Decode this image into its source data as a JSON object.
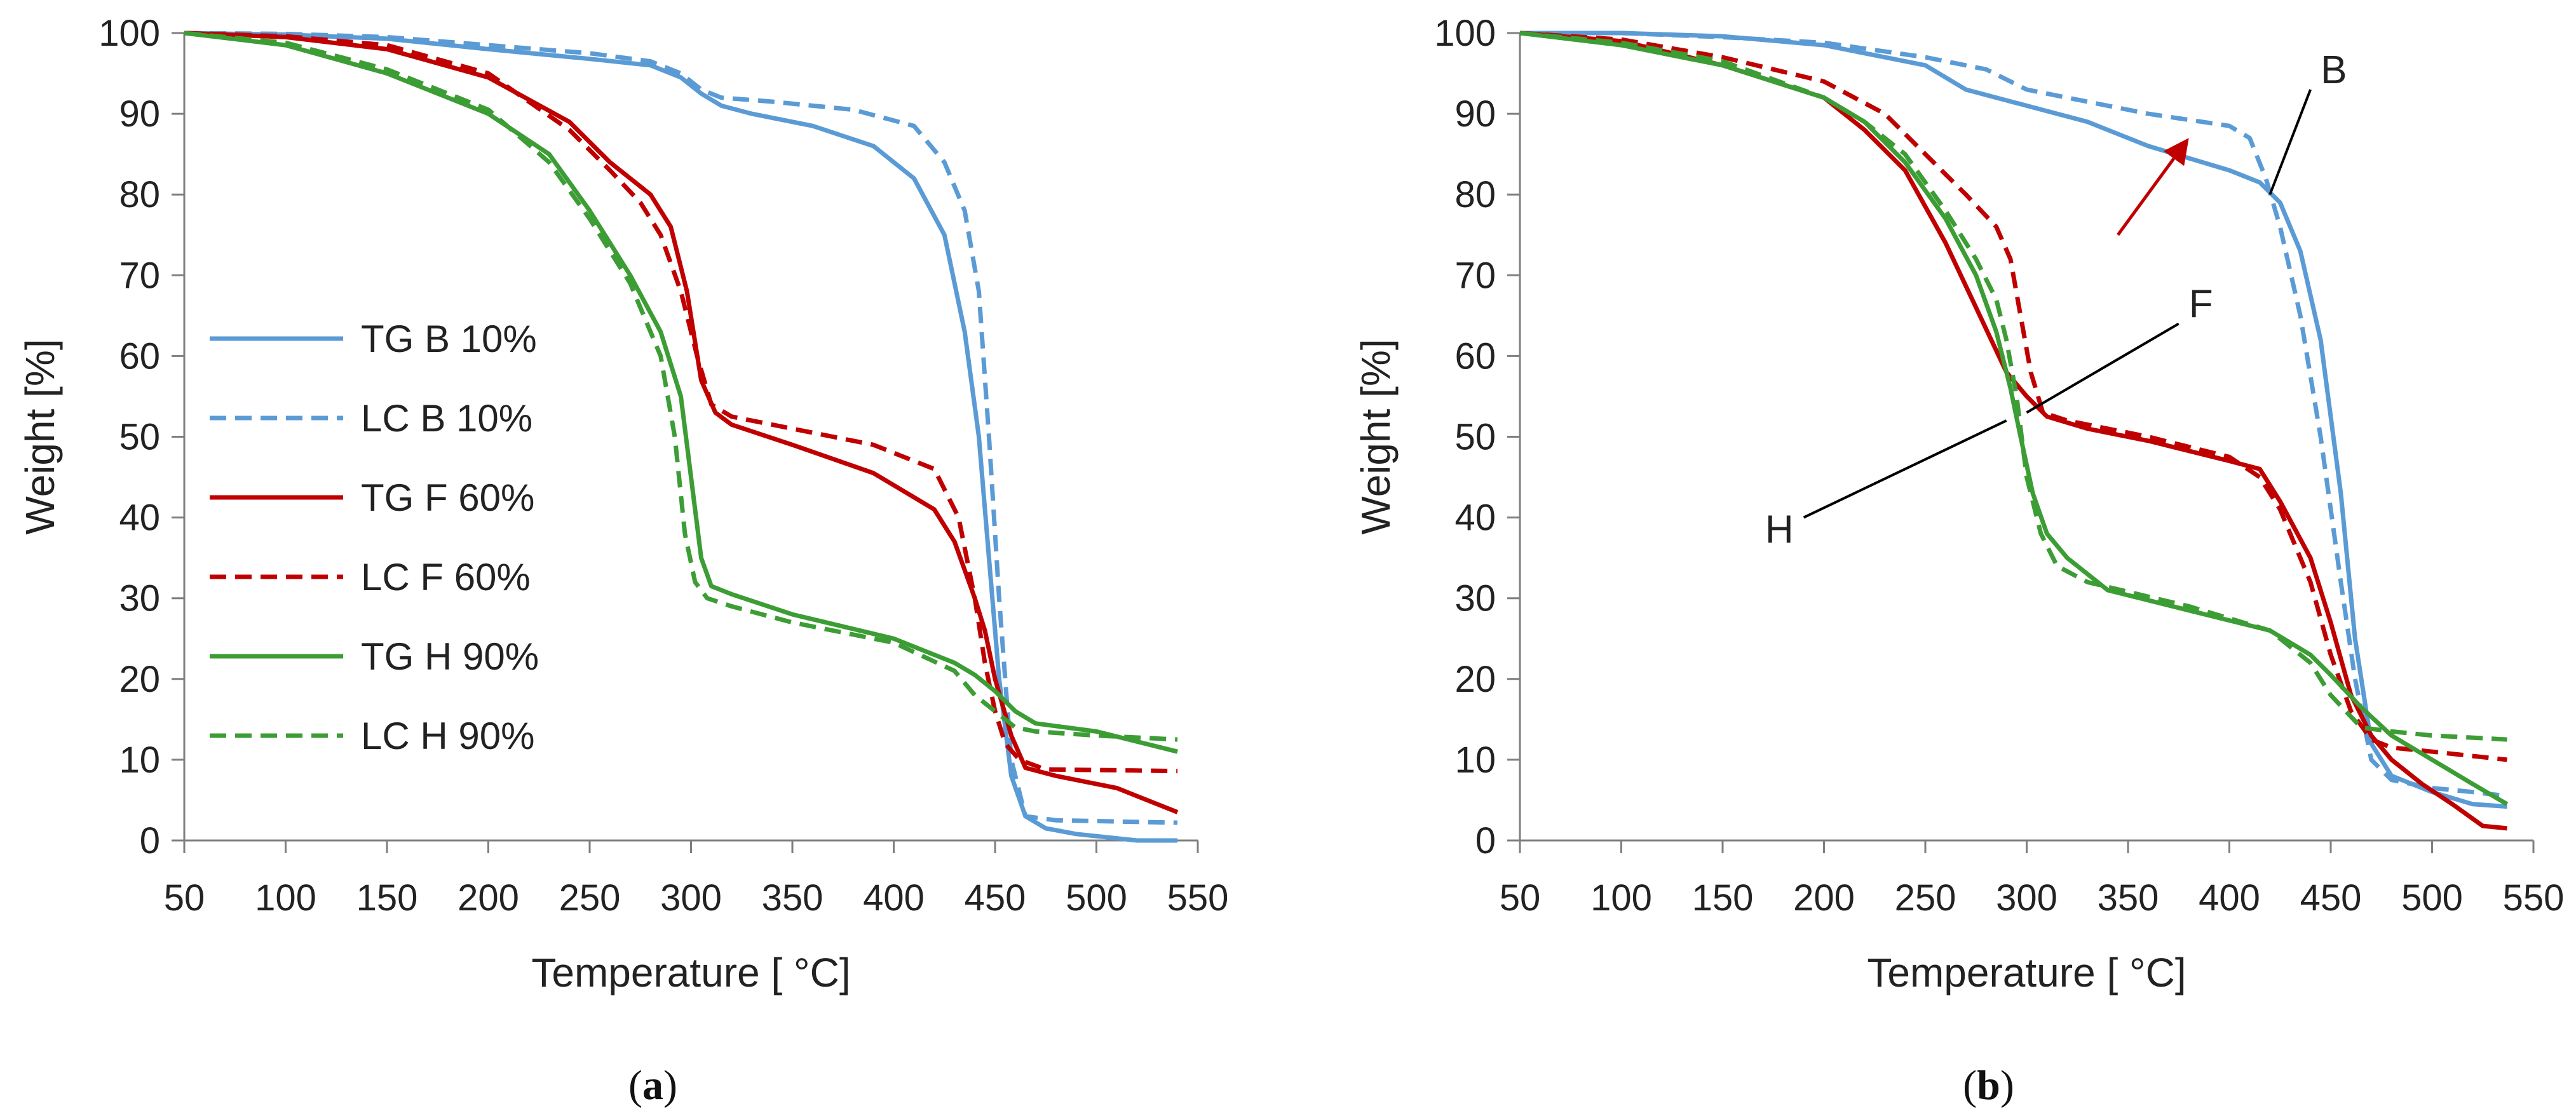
{
  "colors": {
    "blue": "#5b9bd5",
    "red": "#c00000",
    "green": "#3c9d35",
    "axis": "#7f7f7f",
    "annotation_line": "#000000",
    "arrow": "#c00000"
  },
  "chart_data": [
    {
      "type": "line",
      "panel": "a",
      "caption_letter": "a",
      "caption_open": "(",
      "caption_close": ")",
      "xlabel": "Temperature [ °C]",
      "ylabel": "Weight [%]",
      "xlim": [
        50,
        550
      ],
      "ylim": [
        0,
        100
      ],
      "xticks": [
        50,
        100,
        150,
        200,
        250,
        300,
        350,
        400,
        450,
        500,
        550
      ],
      "yticks": [
        0,
        10,
        20,
        30,
        40,
        50,
        60,
        70,
        80,
        90,
        100
      ],
      "legend": [
        "TG B 10%",
        "LC B 10%",
        "TG F 60%",
        "LC F 60%",
        "TG H 90%",
        "LC H 90%"
      ],
      "series": [
        {
          "name": "TG B 10%",
          "color": "blue",
          "dash": false,
          "x": [
            50,
            100,
            150,
            200,
            250,
            280,
            295,
            305,
            315,
            330,
            360,
            390,
            410,
            425,
            435,
            442,
            447,
            452,
            458,
            465,
            475,
            490,
            520,
            540
          ],
          "y": [
            100,
            99.8,
            99.3,
            98,
            96.8,
            96,
            94.5,
            92.5,
            91,
            90,
            88.5,
            86,
            82,
            75,
            63,
            50,
            35,
            20,
            8,
            3,
            1.5,
            0.8,
            0,
            0
          ]
        },
        {
          "name": "LC B 10%",
          "color": "blue",
          "dash": true,
          "x": [
            50,
            100,
            150,
            200,
            250,
            280,
            295,
            305,
            315,
            340,
            380,
            410,
            425,
            435,
            442,
            447,
            452,
            458,
            465,
            480,
            520,
            540
          ],
          "y": [
            100,
            99.9,
            99.5,
            98.5,
            97.5,
            96.5,
            95,
            93,
            92,
            91.5,
            90.5,
            88.5,
            84,
            78,
            68,
            50,
            30,
            10,
            3,
            2.5,
            2.3,
            2.2
          ]
        },
        {
          "name": "TG F 60%",
          "color": "red",
          "dash": false,
          "x": [
            50,
            100,
            150,
            200,
            240,
            260,
            280,
            290,
            298,
            305,
            312,
            320,
            350,
            390,
            420,
            430,
            440,
            445,
            450,
            458,
            465,
            480,
            510,
            540
          ],
          "y": [
            100,
            99.5,
            98,
            94.5,
            89,
            84,
            80,
            76,
            68,
            57,
            53,
            51.5,
            49,
            45.5,
            41,
            37,
            30,
            26,
            20,
            13,
            9,
            8,
            6.5,
            3.5
          ]
        },
        {
          "name": "LC F 60%",
          "color": "red",
          "dash": true,
          "x": [
            50,
            100,
            150,
            200,
            240,
            260,
            275,
            285,
            295,
            303,
            310,
            320,
            350,
            390,
            420,
            432,
            440,
            445,
            450,
            455,
            462,
            475,
            510,
            540
          ],
          "y": [
            100,
            99.6,
            98.5,
            95,
            88,
            83,
            79,
            75,
            68,
            60,
            54,
            52.5,
            51,
            49,
            46,
            40,
            30,
            22,
            16,
            12,
            10,
            8.8,
            8.7,
            8.6
          ]
        },
        {
          "name": "TG H 90%",
          "color": "green",
          "dash": false,
          "x": [
            50,
            100,
            150,
            200,
            230,
            250,
            270,
            285,
            295,
            300,
            305,
            310,
            320,
            350,
            400,
            430,
            440,
            450,
            460,
            470,
            500,
            540
          ],
          "y": [
            100,
            98.5,
            95,
            90,
            85,
            78,
            70,
            63,
            55,
            45,
            35,
            31.5,
            30.5,
            28,
            25,
            22,
            20.5,
            18.5,
            16,
            14.5,
            13.5,
            11
          ]
        },
        {
          "name": "LC H 90%",
          "color": "green",
          "dash": true,
          "x": [
            50,
            100,
            150,
            200,
            230,
            250,
            270,
            285,
            292,
            297,
            302,
            308,
            320,
            350,
            400,
            430,
            440,
            450,
            460,
            470,
            500,
            540
          ],
          "y": [
            100,
            98.8,
            95.5,
            90.5,
            84,
            77,
            69,
            60,
            50,
            38,
            32,
            30,
            29,
            27,
            24.5,
            21,
            18,
            16,
            14,
            13.5,
            13,
            12.5
          ]
        }
      ]
    },
    {
      "type": "line",
      "panel": "b",
      "caption_letter": "b",
      "caption_open": "(",
      "caption_close": ")",
      "xlabel": "Temperature [ °C]",
      "ylabel": "Weight [%]",
      "xlim": [
        50,
        550
      ],
      "ylim": [
        0,
        100
      ],
      "xticks": [
        50,
        100,
        150,
        200,
        250,
        300,
        350,
        400,
        450,
        500,
        550
      ],
      "yticks": [
        0,
        10,
        20,
        30,
        40,
        50,
        60,
        70,
        80,
        90,
        100
      ],
      "annotations": [
        {
          "label": "B",
          "point": [
            420,
            80
          ],
          "anchor": [
            440,
            93
          ]
        },
        {
          "label": "F",
          "point": [
            300,
            53
          ],
          "anchor": [
            375,
            64
          ]
        },
        {
          "label": "H",
          "point": [
            290,
            52
          ],
          "anchor": [
            190,
            40
          ]
        }
      ],
      "arrow": {
        "from": [
          345,
          75
        ],
        "to": [
          380,
          87
        ]
      },
      "series": [
        {
          "name": "TG B",
          "color": "blue",
          "dash": false,
          "x": [
            50,
            100,
            150,
            200,
            230,
            250,
            270,
            300,
            330,
            360,
            380,
            400,
            415,
            425,
            435,
            445,
            455,
            462,
            470,
            480,
            500,
            520,
            537
          ],
          "y": [
            100,
            100,
            99.6,
            98.5,
            97,
            96,
            93,
            91,
            89,
            86,
            84.5,
            83,
            81.5,
            79,
            73,
            62,
            43,
            25,
            12,
            8,
            6,
            4.5,
            4.2
          ]
        },
        {
          "name": "LC B",
          "color": "blue",
          "dash": true,
          "x": [
            50,
            100,
            150,
            200,
            250,
            280,
            300,
            320,
            360,
            400,
            410,
            418,
            425,
            435,
            445,
            455,
            462,
            470,
            480,
            500,
            520,
            537
          ],
          "y": [
            100,
            100,
            99.5,
            98.8,
            97,
            95.5,
            93,
            92,
            90,
            88.5,
            87,
            82,
            76,
            65,
            50,
            32,
            20,
            10,
            7.5,
            6.5,
            6,
            5.5
          ]
        },
        {
          "name": "TG F",
          "color": "red",
          "dash": false,
          "x": [
            50,
            100,
            150,
            200,
            220,
            240,
            260,
            275,
            290,
            300,
            310,
            330,
            360,
            400,
            415,
            425,
            440,
            450,
            460,
            470,
            480,
            495,
            510,
            525,
            537
          ],
          "y": [
            100,
            99,
            96,
            92,
            88,
            83,
            74,
            66,
            58,
            55,
            52.5,
            51,
            49.5,
            47,
            46,
            42,
            35,
            27,
            18,
            13,
            10,
            7,
            4.5,
            1.8,
            1.5
          ]
        },
        {
          "name": "LC F",
          "color": "red",
          "dash": true,
          "x": [
            50,
            100,
            150,
            200,
            230,
            250,
            270,
            285,
            292,
            297,
            302,
            308,
            320,
            360,
            400,
            415,
            425,
            440,
            450,
            460,
            470,
            480,
            500,
            537
          ],
          "y": [
            100,
            99.2,
            97,
            94,
            90,
            85,
            80,
            76,
            72,
            65,
            58,
            53,
            52,
            50,
            47.5,
            45,
            41,
            32,
            23,
            16,
            12.5,
            11.5,
            11,
            10
          ]
        },
        {
          "name": "TG H",
          "color": "green",
          "dash": false,
          "x": [
            50,
            100,
            150,
            200,
            220,
            240,
            260,
            275,
            285,
            292,
            297,
            303,
            310,
            320,
            340,
            380,
            420,
            440,
            450,
            465,
            480,
            500,
            520,
            537
          ],
          "y": [
            100,
            98.5,
            96,
            92,
            89,
            84,
            77,
            70,
            63,
            56,
            50,
            43,
            38,
            35,
            31,
            28.5,
            26,
            23,
            20.5,
            16.5,
            13,
            10,
            7,
            4.5
          ]
        },
        {
          "name": "LC H",
          "color": "green",
          "dash": true,
          "x": [
            50,
            100,
            150,
            200,
            220,
            240,
            260,
            275,
            285,
            290,
            295,
            300,
            307,
            315,
            330,
            380,
            420,
            440,
            450,
            465,
            480,
            500,
            537
          ],
          "y": [
            100,
            98.8,
            96.5,
            92,
            89,
            85,
            78,
            72,
            67,
            62,
            55,
            45,
            38,
            34,
            32,
            29,
            26,
            22,
            18,
            14,
            13.5,
            13,
            12.5
          ]
        }
      ]
    }
  ]
}
